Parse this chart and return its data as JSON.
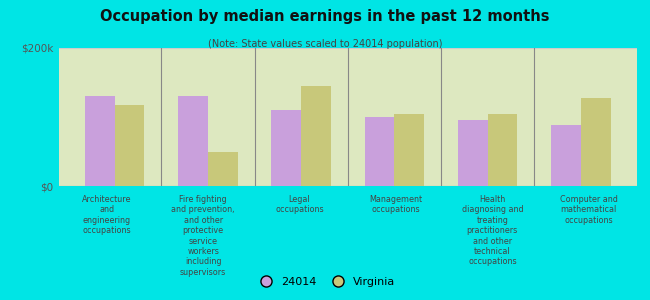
{
  "title": "Occupation by median earnings in the past 12 months",
  "subtitle": "(Note: State values scaled to 24014 population)",
  "background_color": "#00e5e5",
  "plot_bg_color": "#dde8c0",
  "categories": [
    "Architecture\nand\nengineering\noccupations",
    "Fire fighting\nand prevention,\nand other\nprotective\nservice\nworkers\nincluding\nsupervisors",
    "Legal\noccupations",
    "Management\noccupations",
    "Health\ndiagnosing and\ntreating\npractitioners\nand other\ntechnical\noccupations",
    "Computer and\nmathematical\noccupations"
  ],
  "values_24014": [
    130000,
    130000,
    110000,
    100000,
    95000,
    88000
  ],
  "values_virginia": [
    118000,
    50000,
    145000,
    105000,
    105000,
    128000
  ],
  "color_24014": "#c9a0dc",
  "color_virginia": "#c8c87a",
  "ylim": [
    0,
    200000
  ],
  "yticks": [
    0,
    200000
  ],
  "ytick_labels": [
    "$0",
    "$200k"
  ],
  "legend_24014": "24014",
  "legend_virginia": "Virginia",
  "bar_width": 0.32
}
